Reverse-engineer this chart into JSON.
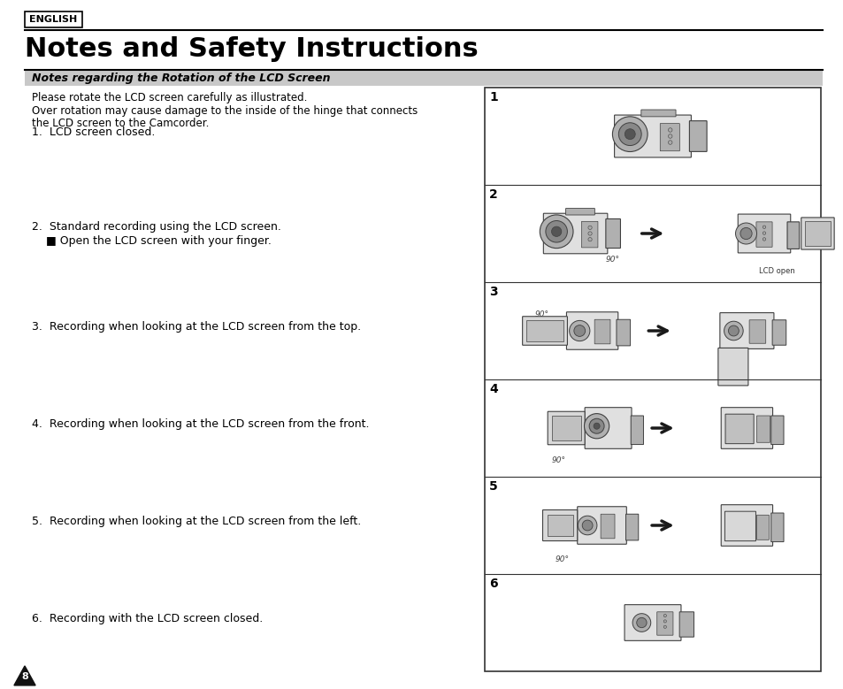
{
  "bg_color": "#ffffff",
  "english_label": "ENGLISH",
  "title": "Notes and Safety Instructions",
  "section_title": "Notes regarding the Rotation of the LCD Screen",
  "intro_line1": "Please rotate the LCD screen carefully as illustrated.",
  "intro_line2": "Over rotation may cause damage to the inside of the hinge that connects",
  "intro_line3": "the LCD screen to the Camcorder.",
  "item1": "1.  LCD screen closed.",
  "item2": "2.  Standard recording using the LCD screen.",
  "item2b": "    ■ Open the LCD screen with your finger.",
  "item3": "3.  Recording when looking at the LCD screen from the top.",
  "item4": "4.  Recording when looking at the LCD screen from the front.",
  "item5": "5.  Recording when looking at the LCD screen from the left.",
  "item6": "6.  Recording with the LCD screen closed.",
  "page_number": "8",
  "section_bg": "#c8c8c8",
  "text_color": "#000000",
  "cam_body_color": "#e0e0e0",
  "cam_edge_color": "#404040",
  "cam_dark": "#b0b0b0",
  "cam_darker": "#888888",
  "lcd_color": "#d8d8d8",
  "arrow_color": "#1a1a1a"
}
